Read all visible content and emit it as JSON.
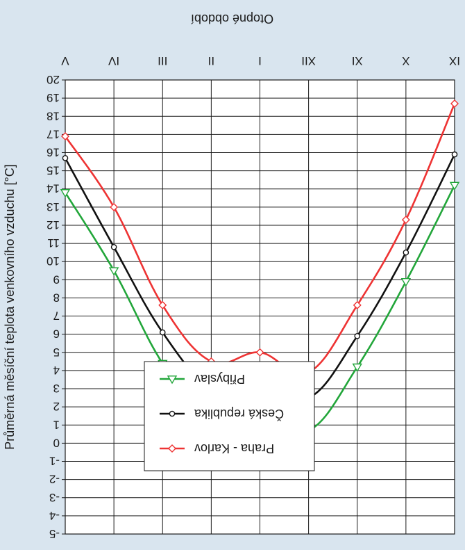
{
  "chart_data": {
    "type": "line",
    "title": "Otopné období",
    "ylabel": "Průměrná měsíční teplota venkovního vzduchu [°C]",
    "xlabel": "",
    "categories": [
      "IX",
      "X",
      "XI",
      "XII",
      "I",
      "II",
      "III",
      "IV",
      "V"
    ],
    "ylim": [
      -5,
      20
    ],
    "y_ticks": [
      -5,
      -4,
      -3,
      -2,
      -1,
      0,
      1,
      2,
      3,
      4,
      5,
      6,
      7,
      8,
      9,
      10,
      11,
      12,
      13,
      14,
      15,
      16,
      17,
      18,
      19,
      20
    ],
    "y_tick_labels": [
      "-5",
      "-4",
      "-3",
      "-2",
      "-1",
      "0",
      "1",
      "2",
      "3",
      "4",
      "5",
      "6",
      "7",
      "8",
      "9",
      "10",
      "11",
      "12",
      "13",
      "14",
      "15",
      "16",
      "17",
      "18",
      "19",
      "20"
    ],
    "orientation": "inverted (rendered rotated 180°)",
    "grid": true,
    "legend_position": "bottom-center",
    "series": [
      {
        "name": "Přibyslav",
        "color": "#22a63a",
        "marker": "triangle",
        "values": [
          14.2,
          8.9,
          4.2,
          0.7,
          1.9,
          1.4,
          4.4,
          9.5,
          13.8
        ]
      },
      {
        "name": "Česká republika",
        "color": "#111111",
        "marker": "circle",
        "values": [
          15.9,
          10.5,
          5.9,
          2.5,
          3.6,
          3.1,
          6.1,
          10.8,
          15.7
        ]
      },
      {
        "name": "Praha - Karlov",
        "color": "#ee3333",
        "marker": "diamond",
        "values": [
          18.7,
          12.3,
          7.6,
          3.9,
          5.0,
          4.5,
          7.6,
          13.0,
          16.9
        ]
      }
    ]
  }
}
